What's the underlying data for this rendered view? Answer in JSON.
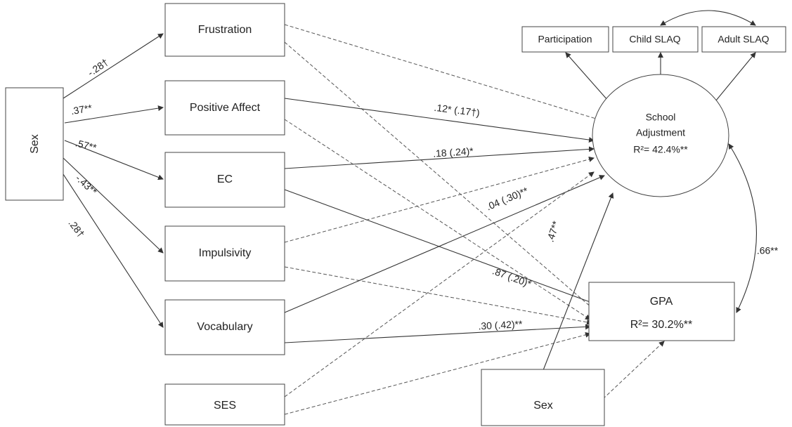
{
  "nodes": [
    {
      "label": "Sex"
    },
    {
      "label": "Frustration"
    },
    {
      "label": "Positive Affect"
    },
    {
      "label": "EC"
    },
    {
      "label": "Impulsivity"
    },
    {
      "label": "Vocabulary"
    },
    {
      "label": "SES"
    },
    {
      "label": "Sex"
    },
    {
      "label": "Participation"
    },
    {
      "label": "Child SLAQ"
    },
    {
      "label": "Adult SLAQ"
    },
    {
      "label": "School",
      "label2": "Adjustment",
      "r2": "R²= 42.4%**"
    },
    {
      "label": "GPA",
      "r2": "R²= 30.2%**"
    }
  ],
  "edges": [
    {
      "label": "-.28†"
    },
    {
      "label": ".37**"
    },
    {
      "label": ".57**"
    },
    {
      "label": "-.43**"
    },
    {
      "label": ".28†"
    },
    {
      "label": ".12* (.17†)"
    },
    {
      "label": ".18 (.24)*"
    },
    {
      "label": ".04 (.30)**"
    },
    {
      "label": ".87 (.20)*"
    },
    {
      "label": ".30 (.42)**"
    },
    {
      "label": ".47**"
    },
    {
      "label": ".66**"
    }
  ]
}
